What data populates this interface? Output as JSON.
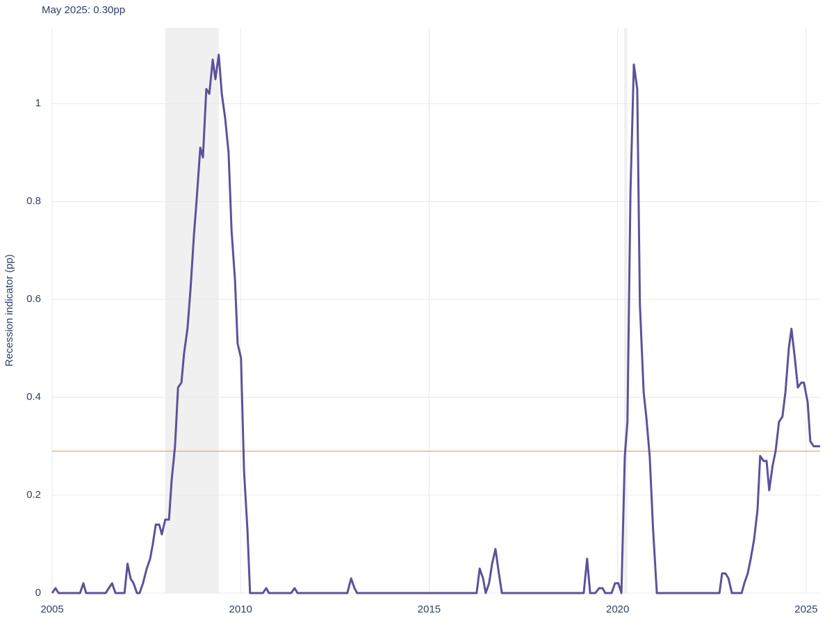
{
  "chart_data": {
    "type": "line",
    "title": "May 2025: 0.30pp",
    "y_label": "Recession indicator (pp)",
    "color": "#5b5299",
    "threshold": 0.29,
    "threshold_color": "#f4a460",
    "recessions": [
      [
        2008.0,
        2009.42
      ],
      [
        2020.17,
        2020.26
      ]
    ],
    "xlim": [
      2005,
      2025.37
    ],
    "ylim": [
      0,
      1.155
    ],
    "xticks": [
      2005,
      2010,
      2015,
      2020,
      2025
    ],
    "yticks": [
      0,
      0.2,
      0.4,
      0.6,
      0.8,
      1
    ],
    "grid": true,
    "x": [
      2005.0,
      2005.09,
      2005.17,
      2005.74,
      2005.83,
      2005.9,
      2006.42,
      2006.59,
      2006.68,
      2006.92,
      2007.0,
      2007.08,
      2007.16,
      2007.25,
      2007.32,
      2007.41,
      2007.51,
      2007.6,
      2007.67,
      2007.75,
      2007.84,
      2007.91,
      2008.0,
      2008.1,
      2008.17,
      2008.26,
      2008.34,
      2008.43,
      2008.5,
      2008.59,
      2008.67,
      2008.76,
      2008.83,
      2008.93,
      2009.0,
      2009.09,
      2009.17,
      2009.26,
      2009.33,
      2009.42,
      2009.5,
      2009.59,
      2009.68,
      2009.76,
      2009.85,
      2009.92,
      2010.01,
      2010.09,
      2010.18,
      2010.25,
      2010.59,
      2010.68,
      2010.75,
      2011.34,
      2011.43,
      2011.51,
      2012.83,
      2012.93,
      2013.02,
      2013.09,
      2016.26,
      2016.34,
      2016.43,
      2016.5,
      2016.59,
      2016.67,
      2016.76,
      2016.85,
      2016.93,
      2019.1,
      2019.19,
      2019.27,
      2019.41,
      2019.51,
      2019.6,
      2019.67,
      2019.84,
      2019.93,
      2020.02,
      2020.1,
      2020.19,
      2020.26,
      2020.34,
      2020.43,
      2020.52,
      2020.59,
      2020.69,
      2020.76,
      2020.85,
      2020.94,
      2021.04,
      2022.7,
      2022.77,
      2022.86,
      2022.94,
      2023.03,
      2023.29,
      2023.36,
      2023.45,
      2023.53,
      2023.62,
      2023.71,
      2023.78,
      2023.87,
      2023.95,
      2024.02,
      2024.11,
      2024.19,
      2024.28,
      2024.37,
      2024.45,
      2024.54,
      2024.61,
      2024.7,
      2024.78,
      2024.87,
      2024.94,
      2025.04,
      2025.11,
      2025.2,
      2025.37
    ],
    "values": [
      0,
      0.01,
      0,
      0,
      0.02,
      0,
      0,
      0.02,
      0,
      0,
      0.06,
      0.03,
      0.02,
      0,
      0,
      0.02,
      0.05,
      0.07,
      0.1,
      0.14,
      0.14,
      0.12,
      0.15,
      0.15,
      0.23,
      0.3,
      0.42,
      0.43,
      0.49,
      0.54,
      0.62,
      0.73,
      0.8,
      0.91,
      0.89,
      1.03,
      1.02,
      1.09,
      1.05,
      1.1,
      1.02,
      0.97,
      0.9,
      0.74,
      0.64,
      0.51,
      0.48,
      0.25,
      0.13,
      0,
      0,
      0.01,
      0,
      0,
      0.01,
      0,
      0,
      0.03,
      0.01,
      0,
      0,
      0.05,
      0.03,
      0,
      0.02,
      0.06,
      0.09,
      0.04,
      0,
      0,
      0.07,
      0,
      0,
      0.01,
      0.01,
      0,
      0,
      0.02,
      0.02,
      0,
      0.28,
      0.35,
      0.82,
      1.08,
      1.03,
      0.59,
      0.41,
      0.36,
      0.28,
      0.13,
      0,
      0,
      0.04,
      0.04,
      0.03,
      0,
      0,
      0.02,
      0.04,
      0.07,
      0.11,
      0.17,
      0.28,
      0.27,
      0.27,
      0.21,
      0.26,
      0.29,
      0.35,
      0.36,
      0.41,
      0.5,
      0.54,
      0.48,
      0.42,
      0.43,
      0.43,
      0.39,
      0.31,
      0.3,
      0.3
    ]
  }
}
